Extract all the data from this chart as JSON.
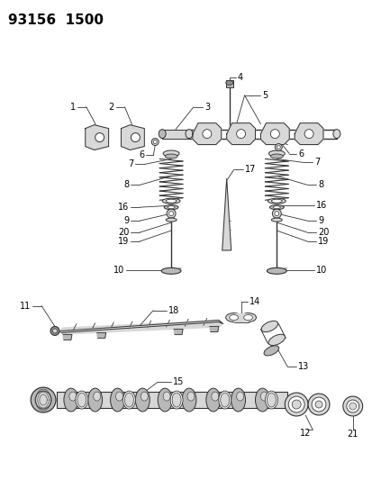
{
  "title": "93156  1500",
  "bg_color": "#ffffff",
  "line_color": "#333333",
  "draw_color": "#555555",
  "title_fontsize": 11,
  "label_fontsize": 7,
  "figsize": [
    4.14,
    5.33
  ],
  "dpi": 100
}
